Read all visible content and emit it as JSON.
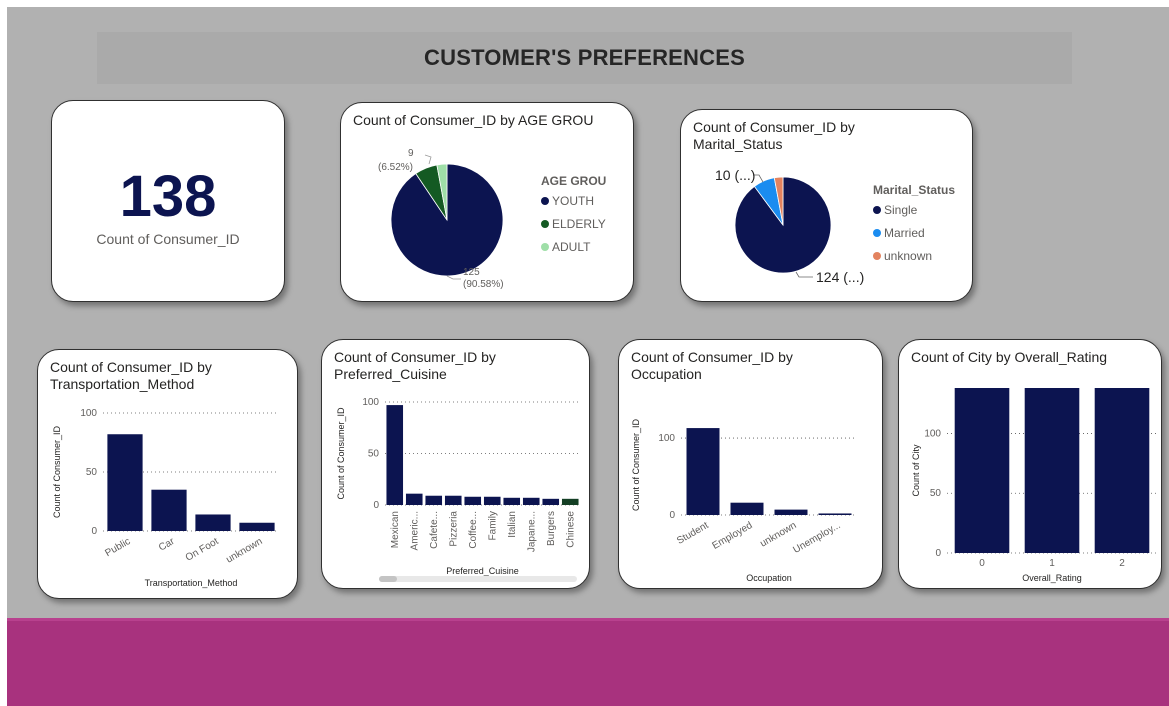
{
  "dashboard": {
    "title": "CUSTOMER'S PREFERENCES",
    "colors": {
      "navy": "#0c1450",
      "background": "#b1b1b1",
      "footer": "#a8327e"
    }
  },
  "kpi": {
    "value": "138",
    "label": "Count of Consumer_ID"
  },
  "chart_data": [
    {
      "id": "age",
      "type": "pie",
      "title": "Count of Consumer_ID by AGE GROU",
      "legend_title": "AGE GROU",
      "legend_position": "right",
      "slices": [
        {
          "label": "YOUTH",
          "value": 125,
          "color": "#0c1450"
        },
        {
          "label": "ELDERLY",
          "value": 9,
          "color": "#145a23"
        },
        {
          "label": "ADULT",
          "value": 4,
          "color": "#9fdfa8"
        }
      ],
      "data_labels": [
        {
          "text": "125",
          "subtext": "(90.58%)"
        },
        {
          "text": "9",
          "subtext": "(6.52%)"
        }
      ]
    },
    {
      "id": "marital",
      "type": "pie",
      "title": "Count of Consumer_ID by Marital_Status",
      "legend_title": "Marital_Status",
      "legend_position": "right",
      "slices": [
        {
          "label": "Single",
          "value": 124,
          "color": "#0c1450"
        },
        {
          "label": "Married",
          "value": 10,
          "color": "#1a8cf0"
        },
        {
          "label": "unknown",
          "value": 4,
          "color": "#e3835f"
        }
      ],
      "data_labels": [
        {
          "text": "124 (...)"
        },
        {
          "text": "10 (...)"
        }
      ]
    },
    {
      "id": "transport",
      "type": "bar",
      "title": "Count of Consumer_ID by Transportation_Method",
      "xlabel": "Transportation_Method",
      "ylabel": "Count of Consumer_ID",
      "categories": [
        "Public",
        "Car",
        "On Foot",
        "unknown"
      ],
      "values": [
        82,
        35,
        14,
        7
      ],
      "ylim": [
        0,
        100
      ],
      "yticks": [
        0,
        50,
        100
      ],
      "grid": true
    },
    {
      "id": "cuisine",
      "type": "bar",
      "title": "Count of Consumer_ID by Preferred_Cuisine",
      "xlabel": "Preferred_Cuisine",
      "ylabel": "Count of Consumer_ID",
      "categories": [
        "Mexican",
        "Americ...",
        "Cafete...",
        "Pizzeria",
        "Coffee...",
        "Family",
        "Italian",
        "Japane...",
        "Burgers",
        "Chinese"
      ],
      "values": [
        97,
        11,
        9,
        9,
        8,
        8,
        7,
        7,
        6,
        6
      ],
      "ylim": [
        0,
        100
      ],
      "yticks": [
        0,
        50,
        100
      ],
      "grid": true
    },
    {
      "id": "occupation",
      "type": "bar",
      "title": "Count of Consumer_ID by Occupation",
      "xlabel": "Occupation",
      "ylabel": "Count of Consumer_ID",
      "categories": [
        "Student",
        "Employed",
        "unknown",
        "Unemploy..."
      ],
      "values": [
        113,
        16,
        7,
        2
      ],
      "ylim": [
        0,
        130
      ],
      "yticks": [
        0,
        100
      ],
      "grid": true
    },
    {
      "id": "rating",
      "type": "bar",
      "title": "Count of City by Overall_Rating",
      "xlabel": "Overall_Rating",
      "ylabel": "Count of City",
      "categories": [
        "0",
        "1",
        "2"
      ],
      "values": [
        138,
        138,
        138
      ],
      "ylim": [
        0,
        138
      ],
      "yticks": [
        0,
        50,
        100
      ],
      "grid": true
    }
  ]
}
